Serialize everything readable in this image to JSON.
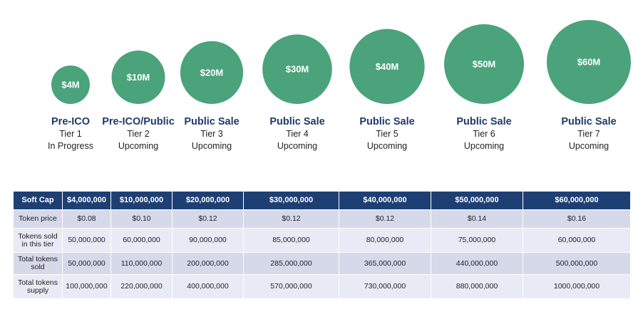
{
  "chart_data": {
    "type": "bubble",
    "tiers": [
      {
        "value_label": "$4M",
        "value": 4,
        "name": "Pre-ICO",
        "tier": "Tier 1",
        "status": "In Progress"
      },
      {
        "value_label": "$10M",
        "value": 10,
        "name": "Pre-ICO/Public",
        "tier": "Tier 2",
        "status": "Upcoming"
      },
      {
        "value_label": "$20M",
        "value": 20,
        "name": "Public Sale",
        "tier": "Tier 3",
        "status": "Upcoming"
      },
      {
        "value_label": "$30M",
        "value": 30,
        "name": "Public Sale",
        "tier": "Tier 4",
        "status": "Upcoming"
      },
      {
        "value_label": "$40M",
        "value": 40,
        "name": "Public Sale",
        "tier": "Tier 5",
        "status": "Upcoming"
      },
      {
        "value_label": "$50M",
        "value": 50,
        "name": "Public Sale",
        "tier": "Tier 6",
        "status": "Upcoming"
      },
      {
        "value_label": "$60M",
        "value": 60,
        "name": "Public Sale",
        "tier": "Tier 7",
        "status": "Upcoming"
      }
    ]
  },
  "colors": {
    "bubble": "#4aa37b",
    "tier_name": "#1f3a6b",
    "table_header": "#1e3f74",
    "row_dark": "#d5d9ea",
    "row_light": "#e8ebf5"
  },
  "table": {
    "header": [
      "Soft Cap",
      "$4,000,000",
      "$10,000,000",
      "$20,000,000",
      "$30,000,000",
      "$40,000,000",
      "$50,000,000",
      "$60,000,000"
    ],
    "rows": [
      {
        "label": "Token price",
        "cells": [
          "$0.08",
          "$0.10",
          "$0.12",
          "$0.12",
          "$0.12",
          "$0.14",
          "$0.16"
        ]
      },
      {
        "label": "Tokens sold in this tier",
        "cells": [
          "50,000,000",
          "60,000,000",
          "90,000,000",
          "85,000,000",
          "80,000,000",
          "75,000,000",
          "60,000,000"
        ]
      },
      {
        "label": "Total tokens sold",
        "cells": [
          "50,000,000",
          "110,000,000",
          "200,000,000",
          "285,000,000",
          "365,000,000",
          "440,000,000",
          "500,000,000"
        ]
      },
      {
        "label": "Total tokens supply",
        "cells": [
          "100,000,000",
          "220,000,000",
          "400,000,000",
          "570,000,000",
          "730,000,000",
          "880,000,000",
          "1000,000,000"
        ]
      }
    ]
  }
}
